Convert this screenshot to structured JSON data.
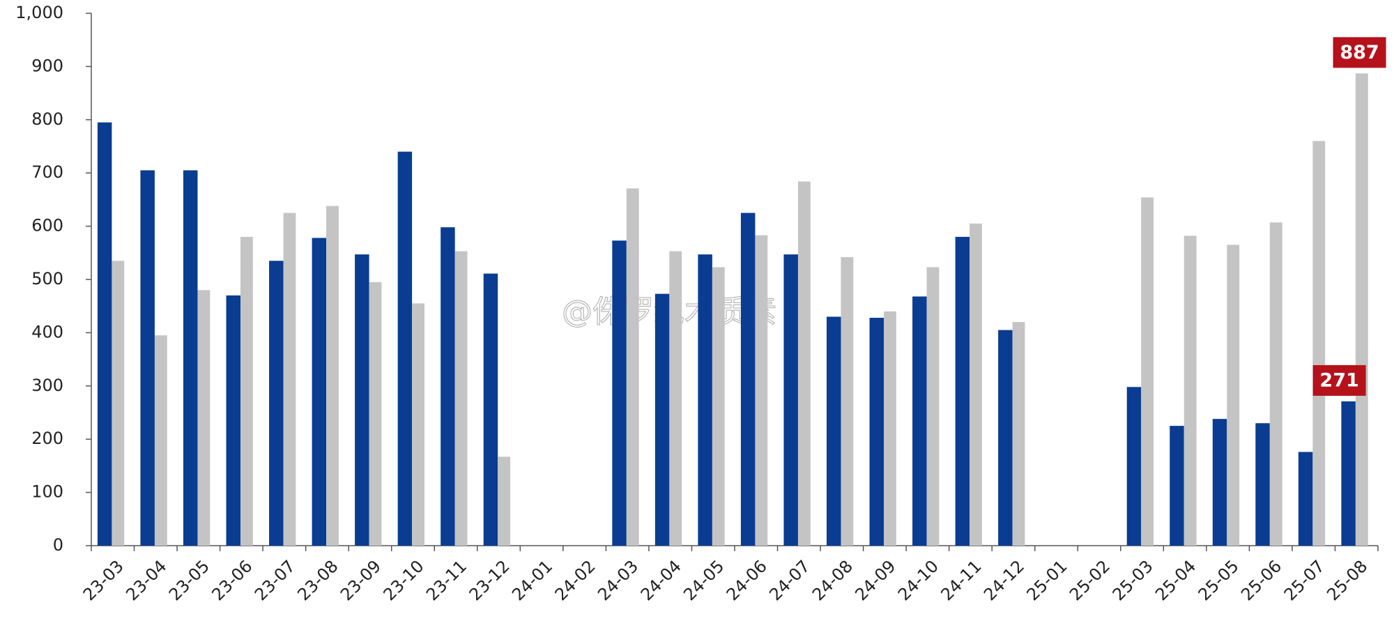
{
  "chart_data": {
    "type": "bar",
    "categories": [
      "23-03",
      "23-04",
      "23-05",
      "23-06",
      "23-07",
      "23-08",
      "23-09",
      "23-10",
      "23-11",
      "23-12",
      "24-01",
      "24-02",
      "24-03",
      "24-04",
      "24-05",
      "24-06",
      "24-07",
      "24-08",
      "24-09",
      "24-10",
      "24-11",
      "24-12",
      "25-01",
      "25-02",
      "25-03",
      "25-04",
      "25-05",
      "25-06",
      "25-07",
      "25-08"
    ],
    "series": [
      {
        "color": "#0a3d91",
        "values": [
          795,
          705,
          705,
          470,
          535,
          578,
          547,
          740,
          598,
          511,
          null,
          null,
          573,
          473,
          547,
          625,
          547,
          430,
          428,
          468,
          580,
          405,
          null,
          null,
          298,
          225,
          238,
          230,
          176,
          271
        ]
      },
      {
        "color": "#c4c4c4",
        "values": [
          535,
          395,
          480,
          580,
          625,
          638,
          495,
          455,
          553,
          167,
          null,
          null,
          671,
          553,
          523,
          583,
          684,
          542,
          440,
          523,
          605,
          420,
          null,
          null,
          654,
          582,
          565,
          607,
          760,
          887
        ]
      }
    ],
    "ylim": [
      0,
      1000
    ],
    "yticks": [
      0,
      100,
      200,
      300,
      400,
      500,
      600,
      700,
      800,
      900,
      {
        "value": 1000,
        "label": "1,000"
      }
    ],
    "grid": false,
    "label_color": "#b5121b",
    "watermark": "@侏罗纪木质素"
  }
}
